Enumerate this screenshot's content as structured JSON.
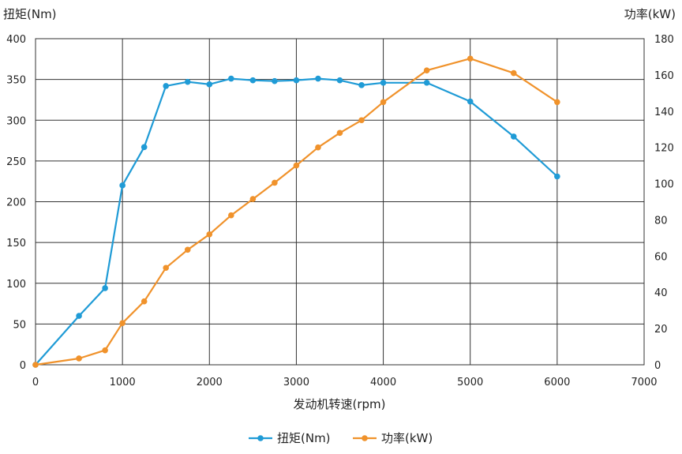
{
  "chart_data": {
    "type": "line",
    "xlabel": "发动机转速(rpm)",
    "ylabel_left": "扭矩(Nm)",
    "ylabel_right": "功率(kW)",
    "xlim": [
      0,
      7000
    ],
    "ylim_left": [
      0,
      400
    ],
    "ylim_right": [
      0,
      180
    ],
    "x_ticks": [
      0,
      1000,
      2000,
      3000,
      4000,
      5000,
      6000,
      7000
    ],
    "y_ticks_left": [
      0,
      50,
      100,
      150,
      200,
      250,
      300,
      350,
      400
    ],
    "y_ticks_right": [
      0,
      20,
      40,
      60,
      80,
      100,
      120,
      140,
      160,
      180
    ],
    "grid": true,
    "legend_position": "bottom-center",
    "series": [
      {
        "name": "扭矩(Nm)",
        "axis": "left",
        "color": "#1f9bd6",
        "x": [
          0,
          500,
          800,
          1000,
          1250,
          1500,
          1750,
          2000,
          2250,
          2500,
          2750,
          3000,
          3250,
          3500,
          3750,
          4000,
          4500,
          5000,
          5500,
          6000
        ],
        "values": [
          0,
          60,
          94,
          220,
          267,
          342,
          347,
          344,
          351,
          349,
          348,
          349,
          351,
          349,
          343,
          346,
          346,
          323,
          280,
          231
        ]
      },
      {
        "name": "功率(kW)",
        "axis": "right",
        "color": "#f0922b",
        "x": [
          0,
          500,
          800,
          1000,
          1250,
          1500,
          1750,
          2000,
          2250,
          2500,
          2750,
          3000,
          3250,
          3500,
          3750,
          4000,
          4500,
          5000,
          5500,
          6000
        ],
        "values": [
          0,
          3.5,
          8,
          23,
          35,
          53.5,
          63.5,
          72,
          82.5,
          91.5,
          100.5,
          110,
          120,
          128,
          135,
          145,
          162.5,
          169,
          161,
          145
        ]
      }
    ]
  }
}
